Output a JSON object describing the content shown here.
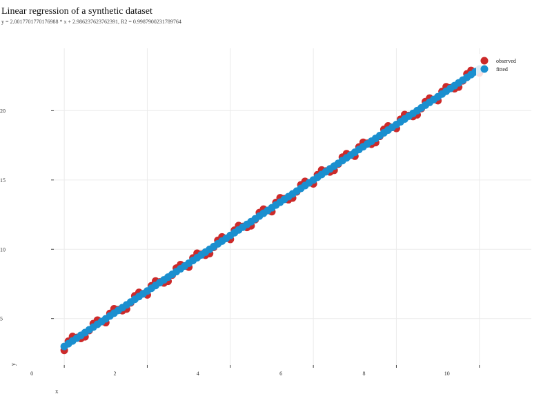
{
  "chart_data": {
    "type": "scatter",
    "title": "Linear regression of a synthetic dataset",
    "subtitle": "y = 2.0017701770176988 * x + 2.986237623762391, R2 = 0.9987900231789764",
    "xlabel": "x",
    "ylabel": "y",
    "xlim": [
      -0.75,
      11.25
    ],
    "ylim": [
      1.5,
      24.5
    ],
    "xticks": [
      0,
      2,
      4,
      6,
      8,
      10
    ],
    "yticks": [
      5,
      10,
      15,
      20
    ],
    "grid": true,
    "legend_position": "top-right",
    "fit": {
      "slope": 2.0017701770176988,
      "intercept": 2.986237623762391
    },
    "point_count": 101,
    "x_range": [
      0,
      10
    ],
    "residual_pattern": [
      -0.28,
      0.18,
      0.32,
      0.05,
      -0.22,
      -0.3,
      -0.05,
      0.25,
      0.3,
      0.0
    ],
    "series": [
      {
        "name": "observed",
        "color": "#cc2a2a"
      },
      {
        "name": "fitted",
        "color": "#1a8fcf"
      }
    ]
  }
}
